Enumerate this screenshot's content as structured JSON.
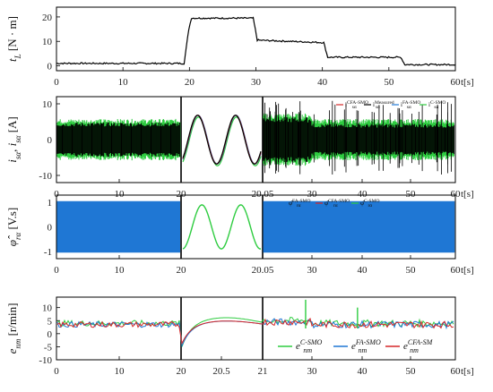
{
  "chart_data": [
    {
      "type": "line",
      "ylabel": "t_L [N · m]",
      "ylabel_parts": {
        "sym": "t",
        "sub": "L",
        "unit": " [N · m]"
      },
      "xlabel": "t[s]",
      "xlim": [
        0,
        60
      ],
      "ylim": [
        -2,
        24
      ],
      "yticks": [
        0,
        10,
        20
      ],
      "xticks": [
        0,
        10,
        20,
        30,
        40,
        50,
        60
      ],
      "xticklabels": [
        "0",
        "10",
        "20",
        "30",
        "40",
        "50",
        "60"
      ],
      "x_unit": "t[s]",
      "series": [
        {
          "color": "#000000",
          "x": [
            0,
            19.2,
            19.9,
            20.3,
            29.6,
            30.2,
            40.2,
            40.8,
            51.8,
            52.4,
            60
          ],
          "y": [
            1,
            1,
            15,
            19.5,
            19.5,
            10.5,
            9.5,
            3.5,
            3.5,
            0.5,
            0.5
          ]
        }
      ]
    },
    {
      "type": "line",
      "ylabel": "i_sα, i_sα [A]",
      "ylabel_parts": {
        "a": "i",
        "a_sub": "sα",
        "sep": ", ",
        "b": "i",
        "b_sub": "sα",
        "unit": " [A]"
      },
      "ylim": [
        -12,
        12
      ],
      "yticks": [
        -10,
        0,
        10
      ],
      "xticks": [
        0,
        10,
        20,
        20.05,
        30,
        40,
        50,
        60
      ],
      "xticklabels": [
        "0",
        "10",
        "20",
        "20.05",
        "30",
        "40",
        "50",
        "60"
      ],
      "x_unit": "t[s]",
      "legend": {
        "placement": "top-right",
        "entries": [
          {
            "name": "i_sα^CFA-SMO",
            "base": "i",
            "sup": "CFA-SMO",
            "sub": "sα",
            "color": "#d62728"
          },
          {
            "name": "i_sα^Measured",
            "base": "i",
            "sup": "Measured",
            "sub": "sα",
            "color": "#000000"
          },
          {
            "name": "i_sα^FA-SMO",
            "base": "i",
            "sup": "FA-SMO",
            "sub": "sα",
            "color": "#1f77d4"
          },
          {
            "name": "i_sα^C-SMO",
            "base": "i",
            "sup": "C-SMO",
            "sub": "sα",
            "color": "#2ecc40"
          }
        ]
      },
      "series": [
        {
          "name": "i_sα^C-SMO",
          "color": "#2ecc40",
          "amplitude": [
            5.5,
            5.5,
            6.5,
            6.5
          ],
          "segments": [
            "band",
            "sine",
            "band",
            "band"
          ]
        },
        {
          "name": "i_sα^Measured",
          "color": "#000000",
          "amplitude": [
            4.5,
            4.5,
            6,
            4
          ]
        }
      ]
    },
    {
      "type": "line",
      "ylabel": "φ̂_rα [V.s]",
      "ylabel_parts": {
        "sym": "φ̂",
        "sub": "rα",
        "unit": " [V.s]"
      },
      "ylim": [
        -1.3,
        1.3
      ],
      "yticks": [
        -1,
        0,
        1
      ],
      "xticks": [
        0,
        10,
        20,
        20.05,
        30,
        40,
        50,
        60
      ],
      "xticklabels": [
        "0",
        "10",
        "20",
        "20.05",
        "30",
        "40",
        "50",
        "60"
      ],
      "x_unit": "t[s]",
      "legend": {
        "placement": "top-right",
        "entries": [
          {
            "name": "φ_rα^FA-SMO",
            "base": "φ̂",
            "sup": "FA-SMO",
            "sub": "rα",
            "color": "#1f77d4"
          },
          {
            "name": "φ_rα^CFA-SMO",
            "base": "φ̂",
            "sup": "CFA-SMO",
            "sub": "rα",
            "color": "#d62728"
          },
          {
            "name": "φ_rα^C-SMO",
            "base": "φ̂",
            "sup": "C-SMO",
            "sub": "rα",
            "color": "#2ecc40"
          }
        ]
      },
      "series": [
        {
          "name": "φ_rα^FA-SMO",
          "color": "#1f77d4",
          "amplitude": 1.05
        },
        {
          "name": "φ_rα^C-SMO",
          "color": "#2ecc40",
          "amplitude": 0.9
        }
      ]
    },
    {
      "type": "line",
      "ylabel": "e_nm [r/min]",
      "ylabel_parts": {
        "sym": "e",
        "sub": "nm",
        "unit": " [r/min]"
      },
      "ylim": [
        -10,
        14
      ],
      "yticks": [
        -10,
        -5,
        0,
        5,
        10
      ],
      "xticks": [
        0,
        10,
        20,
        20.5,
        21,
        30,
        40,
        50,
        60
      ],
      "xticklabels": [
        "0",
        "10",
        "20",
        "20.5",
        "21",
        "30",
        "40",
        "50",
        "60"
      ],
      "x_unit": "t[s]",
      "legend": {
        "placement": "bottom-right",
        "entries": [
          {
            "name": "e_nm^C-SMO",
            "base": "e",
            "sup": "C-SMO",
            "sub": "nm",
            "color": "#2ecc40"
          },
          {
            "name": "e_nm^FA-SMO",
            "base": "e",
            "sup": "FA-SMO",
            "sub": "nm",
            "color": "#1f77d4"
          },
          {
            "name": "e_nm^CFA-SMO",
            "base": "e",
            "sup": "CFA-SM",
            "sub": "nm",
            "color": "#d62728"
          }
        ]
      },
      "series": [
        {
          "name": "e_nm^C-SMO",
          "color": "#2ecc40",
          "level": 4
        },
        {
          "name": "e_nm^FA-SMO",
          "color": "#1f77d4",
          "level": 3.5
        },
        {
          "name": "e_nm^CFA-SMO",
          "color": "#d62728",
          "level": 3.5
        }
      ],
      "spikes": [
        {
          "x": 29.7,
          "y": 13
        },
        {
          "x": 40.2,
          "y": 10
        }
      ]
    }
  ]
}
